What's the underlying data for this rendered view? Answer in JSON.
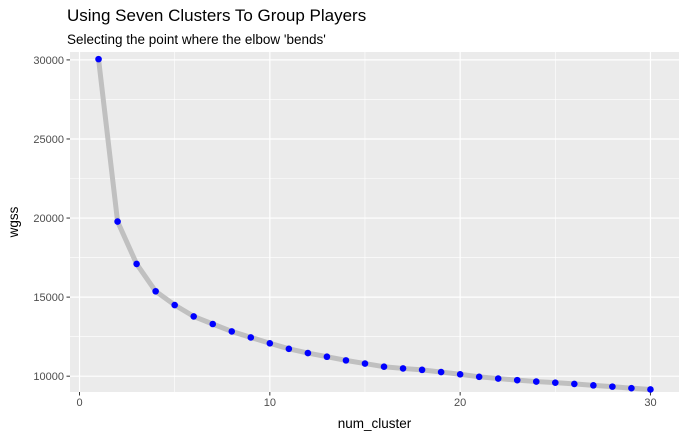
{
  "chart_data": {
    "type": "line",
    "title": "Using Seven Clusters To Group Players",
    "subtitle": "Selecting the point where the elbow 'bends'",
    "xlabel": "num_cluster",
    "ylabel": "wgss",
    "xlim": [
      -0.5,
      31.5
    ],
    "ylim": [
      9000,
      30500
    ],
    "x_ticks": [
      0,
      10,
      20,
      30
    ],
    "x_minor_ticks": [
      5,
      15,
      25
    ],
    "y_ticks": [
      10000,
      15000,
      20000,
      25000,
      30000
    ],
    "y_minor_ticks": [
      12500,
      17500,
      22500,
      27500
    ],
    "grid": true,
    "legend": "none",
    "line_color": "#c0c0c0",
    "point_color": "#0000ff",
    "panel_color": "#ebebeb",
    "grid_color": "#ffffff",
    "series": [
      {
        "x": [
          1,
          2,
          3,
          4,
          5,
          6,
          7,
          8,
          9,
          10,
          11,
          12,
          13,
          14,
          15,
          16,
          17,
          18,
          19,
          20,
          21,
          22,
          23,
          24,
          25,
          26,
          27,
          28,
          29,
          30
        ],
        "y": [
          30050,
          19780,
          17100,
          15370,
          14500,
          13780,
          13300,
          12830,
          12450,
          12080,
          11730,
          11460,
          11230,
          11000,
          10800,
          10600,
          10490,
          10400,
          10260,
          10120,
          9960,
          9850,
          9750,
          9660,
          9590,
          9510,
          9420,
          9340,
          9240,
          9160
        ]
      }
    ]
  }
}
